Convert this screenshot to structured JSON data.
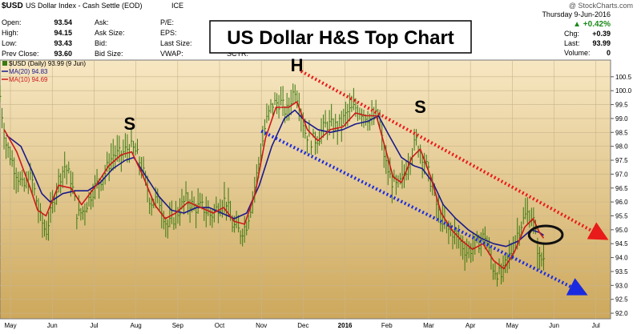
{
  "header": {
    "symbol": "$USD",
    "description": "US Dollar Index - Cash Settle (EOD)",
    "exchange": "ICE",
    "watermark": "@ StockCharts.com",
    "quote_labels": [
      "Open:",
      "High:",
      "Low:",
      "Prev Close:"
    ],
    "quote_values": [
      "93.54",
      "94.15",
      "93.43",
      "93.60"
    ],
    "ask_labels": [
      "Ask:",
      "Ask Size:",
      "Bid:",
      "Bid Size:"
    ],
    "pe_labels": [
      "P/E:",
      "EPS:",
      "Last Size:",
      "VWAP:"
    ],
    "sctr_label": "SCTR:",
    "date": "Thursday 9-Jun-2016",
    "change_pct": "▲ +0.42%",
    "right_labels": [
      "Chg:",
      "Last:",
      "Volume:"
    ],
    "right_values": [
      "+0.39",
      "93.99",
      "0"
    ]
  },
  "chart_title": "US Dollar H&S Top Chart",
  "legend": [
    {
      "text": "$USD (Daily) 93.99 (9 Jun)",
      "color": "#3a7a12"
    },
    {
      "text": "MA(20) 94.83",
      "color": "#1a1a8a"
    },
    {
      "text": "MA(10) 94.69",
      "color": "#cc1a1a"
    }
  ],
  "pattern_labels": [
    "S",
    "H",
    "S"
  ],
  "colors": {
    "background_top": "#f7e7c2",
    "background_bottom": "#cda85c",
    "price_bars": "#3a7a12",
    "ma20": "#1a1a8a",
    "ma10": "#cc1a1a",
    "upper_trendline": "#e81a1a",
    "lower_trendline": "#1a2ae0",
    "title_box_border": "#000000"
  },
  "chart_data": {
    "type": "ohlc",
    "x_axis": {
      "labels": [
        "May",
        "Jun",
        "Jul",
        "Aug",
        "Sep",
        "Oct",
        "Nov",
        "Dec",
        "2016",
        "Feb",
        "Mar",
        "Apr",
        "May",
        "Jun",
        "Jul"
      ],
      "positions": [
        0.25,
        1.25,
        2.25,
        3.25,
        4.25,
        5.25,
        6.25,
        7.25,
        8.25,
        9.25,
        10.25,
        11.25,
        12.25,
        13.25,
        14.25
      ],
      "bold": [
        "2016"
      ],
      "range": [
        0,
        14.6
      ],
      "unit": "months from 2015-05-01"
    },
    "y_axis": {
      "ticks": [
        92.0,
        92.5,
        93.0,
        93.5,
        94.0,
        94.5,
        95.0,
        95.5,
        96.0,
        96.5,
        97.0,
        97.5,
        98.0,
        98.5,
        99.0,
        99.5,
        100.0,
        100.5
      ],
      "range": [
        91.8,
        101.1
      ],
      "side": "right"
    },
    "grid": true,
    "series": [
      {
        "name": "$USD (Daily)",
        "style": "ohlc-bars"
      },
      {
        "name": "MA(20)",
        "style": "line"
      },
      {
        "name": "MA(10)",
        "style": "line"
      }
    ],
    "price_path": [
      [
        0.0,
        99.8
      ],
      [
        0.12,
        98.2
      ],
      [
        0.35,
        97.2
      ],
      [
        0.55,
        96.5
      ],
      [
        0.75,
        96.9
      ],
      [
        0.95,
        95.5
      ],
      [
        1.1,
        94.9
      ],
      [
        1.2,
        95.5
      ],
      [
        1.4,
        96.8
      ],
      [
        1.55,
        97.3
      ],
      [
        1.7,
        96.8
      ],
      [
        1.85,
        95.5
      ],
      [
        2.0,
        95.7
      ],
      [
        2.25,
        96.5
      ],
      [
        2.5,
        97.0
      ],
      [
        2.7,
        97.7
      ],
      [
        2.9,
        97.7
      ],
      [
        3.1,
        98.0
      ],
      [
        3.25,
        97.8
      ],
      [
        3.4,
        97.2
      ],
      [
        3.6,
        96.0
      ],
      [
        3.8,
        96.1
      ],
      [
        4.0,
        95.1
      ],
      [
        4.2,
        95.5
      ],
      [
        4.45,
        96.1
      ],
      [
        4.65,
        95.8
      ],
      [
        4.85,
        95.8
      ],
      [
        5.05,
        95.5
      ],
      [
        5.25,
        95.9
      ],
      [
        5.4,
        96.1
      ],
      [
        5.55,
        95.2
      ],
      [
        5.75,
        94.9
      ],
      [
        5.9,
        95.2
      ],
      [
        6.05,
        96.2
      ],
      [
        6.2,
        97.5
      ],
      [
        6.35,
        98.8
      ],
      [
        6.5,
        99.5
      ],
      [
        6.7,
        99.6
      ],
      [
        6.85,
        99.2
      ],
      [
        7.05,
        100.1
      ],
      [
        7.15,
        99.6
      ],
      [
        7.3,
        98.5
      ],
      [
        7.45,
        98.2
      ],
      [
        7.6,
        98.3
      ],
      [
        7.8,
        98.8
      ],
      [
        8.0,
        98.7
      ],
      [
        8.15,
        98.8
      ],
      [
        8.3,
        99.2
      ],
      [
        8.5,
        99.4
      ],
      [
        8.7,
        99.2
      ],
      [
        8.9,
        98.9
      ],
      [
        9.05,
        99.2
      ],
      [
        9.2,
        97.5
      ],
      [
        9.35,
        96.8
      ],
      [
        9.5,
        96.5
      ],
      [
        9.65,
        96.9
      ],
      [
        9.8,
        97.6
      ],
      [
        9.95,
        98.2
      ],
      [
        10.15,
        97.5
      ],
      [
        10.35,
        96.5
      ],
      [
        10.5,
        95.5
      ],
      [
        10.7,
        95.0
      ],
      [
        10.85,
        94.9
      ],
      [
        11.0,
        94.6
      ],
      [
        11.15,
        94.2
      ],
      [
        11.35,
        94.4
      ],
      [
        11.6,
        94.8
      ],
      [
        11.8,
        93.6
      ],
      [
        12.0,
        93.3
      ],
      [
        12.1,
        93.8
      ],
      [
        12.25,
        94.3
      ],
      [
        12.4,
        95.0
      ],
      [
        12.6,
        95.6
      ],
      [
        12.75,
        95.4
      ],
      [
        12.9,
        93.9
      ],
      [
        13.0,
        94.0
      ]
    ],
    "ma20": [
      [
        0.15,
        98.4
      ],
      [
        0.5,
        98.0
      ],
      [
        0.8,
        97.0
      ],
      [
        1.0,
        96.3
      ],
      [
        1.2,
        96.0
      ],
      [
        1.5,
        96.3
      ],
      [
        1.8,
        96.4
      ],
      [
        2.1,
        96.4
      ],
      [
        2.4,
        96.7
      ],
      [
        2.7,
        97.2
      ],
      [
        3.0,
        97.5
      ],
      [
        3.2,
        97.6
      ],
      [
        3.5,
        96.9
      ],
      [
        3.8,
        96.2
      ],
      [
        4.1,
        95.7
      ],
      [
        4.4,
        95.6
      ],
      [
        4.7,
        95.8
      ],
      [
        5.0,
        95.8
      ],
      [
        5.3,
        95.6
      ],
      [
        5.6,
        95.4
      ],
      [
        5.9,
        95.6
      ],
      [
        6.2,
        96.6
      ],
      [
        6.5,
        98.0
      ],
      [
        6.8,
        99.0
      ],
      [
        7.05,
        99.3
      ],
      [
        7.3,
        98.9
      ],
      [
        7.6,
        98.6
      ],
      [
        7.9,
        98.5
      ],
      [
        8.2,
        98.6
      ],
      [
        8.5,
        98.8
      ],
      [
        8.8,
        98.9
      ],
      [
        9.05,
        99.1
      ],
      [
        9.3,
        98.4
      ],
      [
        9.6,
        97.6
      ],
      [
        9.9,
        97.3
      ],
      [
        10.1,
        97.2
      ],
      [
        10.35,
        96.7
      ],
      [
        10.6,
        95.9
      ],
      [
        10.9,
        95.4
      ],
      [
        11.2,
        95.0
      ],
      [
        11.5,
        94.7
      ],
      [
        11.8,
        94.5
      ],
      [
        12.1,
        94.4
      ],
      [
        12.4,
        94.6
      ],
      [
        12.7,
        95.0
      ],
      [
        12.9,
        94.9
      ],
      [
        13.0,
        94.8
      ]
    ],
    "ma10": [
      [
        0.1,
        98.6
      ],
      [
        0.4,
        97.8
      ],
      [
        0.7,
        96.6
      ],
      [
        0.9,
        95.7
      ],
      [
        1.1,
        95.5
      ],
      [
        1.4,
        96.6
      ],
      [
        1.7,
        96.5
      ],
      [
        1.95,
        95.9
      ],
      [
        2.3,
        96.6
      ],
      [
        2.6,
        97.3
      ],
      [
        2.9,
        97.7
      ],
      [
        3.15,
        97.8
      ],
      [
        3.4,
        97.0
      ],
      [
        3.7,
        95.9
      ],
      [
        3.95,
        95.4
      ],
      [
        4.2,
        95.6
      ],
      [
        4.5,
        96.0
      ],
      [
        4.8,
        95.8
      ],
      [
        5.1,
        95.6
      ],
      [
        5.35,
        95.8
      ],
      [
        5.6,
        95.3
      ],
      [
        5.85,
        95.2
      ],
      [
        6.1,
        96.3
      ],
      [
        6.35,
        98.3
      ],
      [
        6.6,
        99.4
      ],
      [
        6.9,
        99.4
      ],
      [
        7.1,
        99.6
      ],
      [
        7.35,
        98.6
      ],
      [
        7.6,
        98.2
      ],
      [
        7.9,
        98.6
      ],
      [
        8.2,
        98.7
      ],
      [
        8.5,
        99.2
      ],
      [
        8.75,
        99.1
      ],
      [
        9.0,
        99.1
      ],
      [
        9.2,
        98.0
      ],
      [
        9.4,
        96.9
      ],
      [
        9.6,
        96.7
      ],
      [
        9.85,
        97.6
      ],
      [
        10.05,
        97.9
      ],
      [
        10.3,
        96.9
      ],
      [
        10.55,
        95.6
      ],
      [
        10.8,
        95.0
      ],
      [
        11.05,
        94.6
      ],
      [
        11.3,
        94.3
      ],
      [
        11.55,
        94.5
      ],
      [
        11.8,
        93.9
      ],
      [
        12.05,
        93.6
      ],
      [
        12.3,
        94.2
      ],
      [
        12.55,
        95.1
      ],
      [
        12.75,
        95.4
      ],
      [
        12.9,
        94.9
      ],
      [
        13.0,
        94.7
      ]
    ],
    "annotations": [
      {
        "type": "label",
        "text": "S",
        "x": 3.1,
        "y": 98.6,
        "role": "left-shoulder"
      },
      {
        "type": "label",
        "text": "H",
        "x": 7.1,
        "y": 100.7,
        "role": "head"
      },
      {
        "type": "label",
        "text": "S",
        "x": 10.05,
        "y": 99.2,
        "role": "right-shoulder"
      },
      {
        "type": "dotted-arrow",
        "color": "red",
        "from": [
          7.2,
          100.7
        ],
        "to": [
          14.35,
          94.8
        ]
      },
      {
        "type": "dotted-arrow",
        "color": "blue",
        "from": [
          6.25,
          98.55
        ],
        "to": [
          13.85,
          92.8
        ]
      },
      {
        "type": "ellipse",
        "cx": 13.05,
        "cy": 94.82,
        "rx_months": 0.4,
        "ry_price": 0.32
      }
    ]
  }
}
